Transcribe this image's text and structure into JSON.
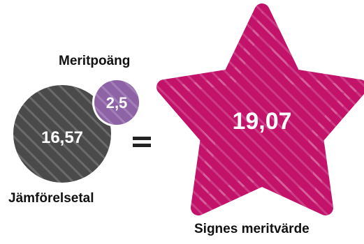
{
  "merit_points": {
    "label": "Meritpoäng",
    "value_text": "2,5",
    "color": "#8e63a6"
  },
  "comparison_score": {
    "label": "Jämförelsetal",
    "value_text": "16,57",
    "color": "#4a4a4a"
  },
  "equals": {
    "symbol": "=",
    "color": "#222222"
  },
  "merit_value": {
    "label": "Signes meritvärde",
    "value_text": "19,07",
    "color": "#c2126a"
  },
  "stripe_color": "#ffffff"
}
